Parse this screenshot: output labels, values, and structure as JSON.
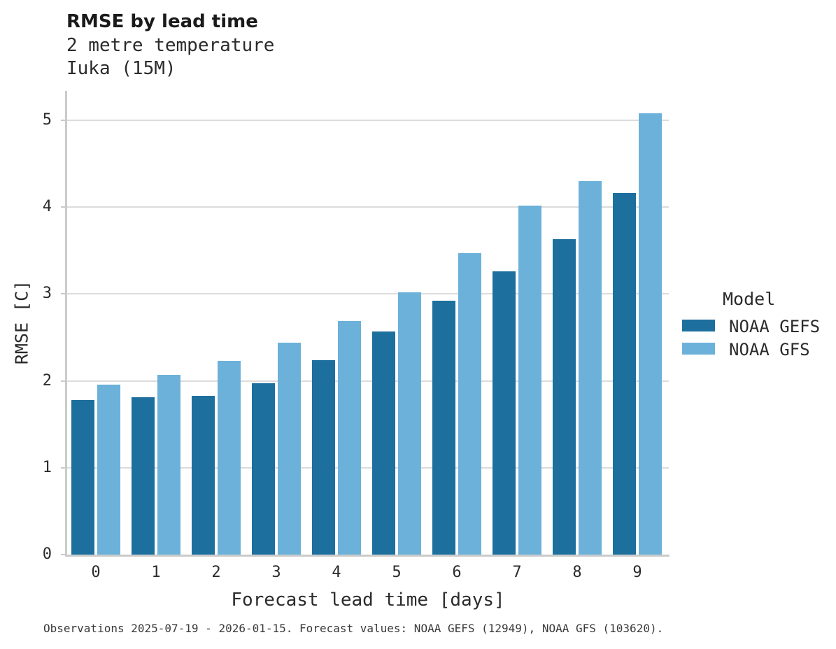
{
  "header": {
    "title": "RMSE by lead time",
    "subtitle_line1": "2 metre temperature",
    "subtitle_line2": "Iuka (15M)"
  },
  "chart_data": {
    "type": "bar",
    "title": "RMSE by lead time",
    "subtitle": [
      "2 metre temperature",
      "Iuka (15M)"
    ],
    "categories": [
      "0",
      "1",
      "2",
      "3",
      "4",
      "5",
      "6",
      "7",
      "8",
      "9"
    ],
    "series": [
      {
        "name": "NOAA GEFS",
        "color": "#1d6f9e",
        "values": [
          1.78,
          1.81,
          1.83,
          1.97,
          2.24,
          2.57,
          2.92,
          3.26,
          3.63,
          4.16
        ]
      },
      {
        "name": "NOAA GFS",
        "color": "#6cb1d9",
        "values": [
          1.96,
          2.07,
          2.23,
          2.44,
          2.69,
          3.02,
          3.47,
          4.02,
          4.3,
          5.08
        ]
      }
    ],
    "xlabel": "Forecast lead time [days]",
    "ylabel": "RMSE [C]",
    "ylim": [
      0,
      5.34
    ],
    "yticks": [
      0,
      1,
      2,
      3,
      4,
      5
    ],
    "grid": true,
    "legend_title": "Model",
    "legend_position": "right"
  },
  "footer": {
    "text": "Observations 2025-07-19 - 2026-01-15. Forecast values: NOAA GEFS (12949), NOAA GFS (103620)."
  }
}
